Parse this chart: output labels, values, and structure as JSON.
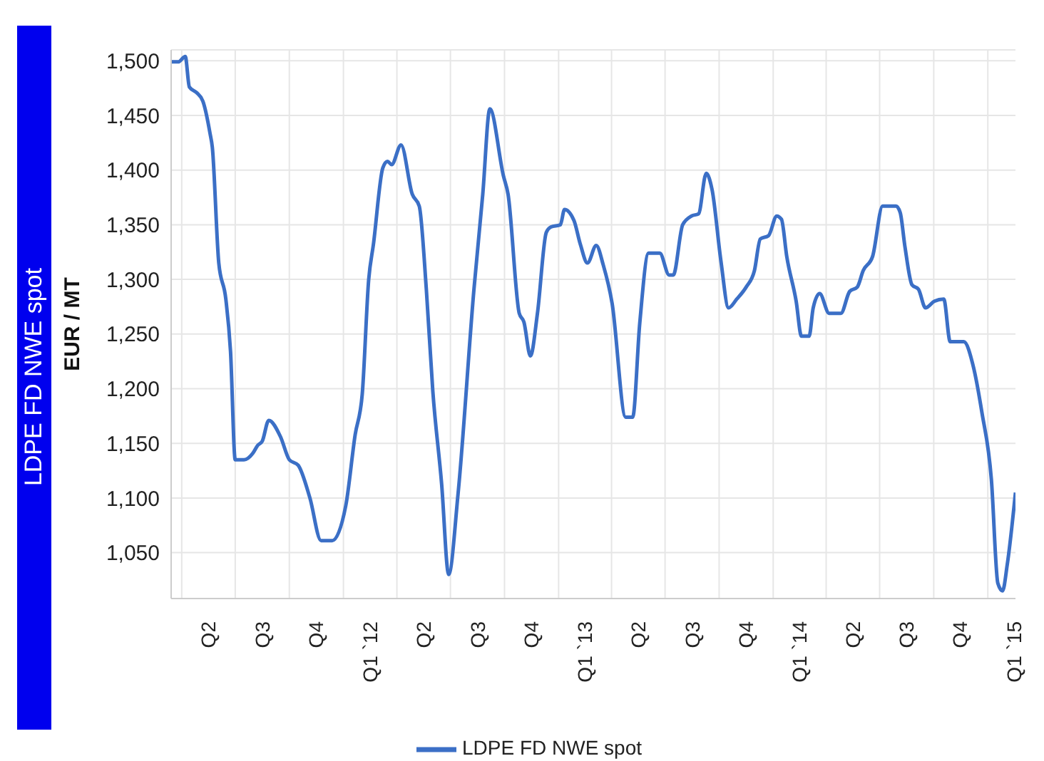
{
  "chart_data": {
    "type": "line",
    "title": "LDPE FD NWE spot",
    "ylabel": "EUR / MT",
    "xlim": [
      "2011-03-14",
      "2015-02-17"
    ],
    "ylim": [
      1008,
      1510
    ],
    "yticks": [
      {
        "value": 1050,
        "label": "1,050"
      },
      {
        "value": 1100,
        "label": "1,100"
      },
      {
        "value": 1150,
        "label": "1,150"
      },
      {
        "value": 1200,
        "label": "1,200"
      },
      {
        "value": 1250,
        "label": "1,250"
      },
      {
        "value": 1300,
        "label": "1,300"
      },
      {
        "value": 1350,
        "label": "1,350"
      },
      {
        "value": 1400,
        "label": "1,400"
      },
      {
        "value": 1450,
        "label": "1,450"
      },
      {
        "value": 1500,
        "label": "1,500"
      }
    ],
    "xticks": [
      {
        "value": "2011-04-01",
        "label": null
      },
      {
        "value": "2011-05-16",
        "label": "Q2"
      },
      {
        "value": "2011-07-01",
        "label": null
      },
      {
        "value": "2011-08-16",
        "label": "Q3"
      },
      {
        "value": "2011-10-01",
        "label": null
      },
      {
        "value": "2011-11-15",
        "label": "Q4"
      },
      {
        "value": "2012-01-01",
        "label": null
      },
      {
        "value": "2012-02-15",
        "label": "Q1 `12"
      },
      {
        "value": "2012-04-01",
        "label": null
      },
      {
        "value": "2012-05-16",
        "label": "Q2"
      },
      {
        "value": "2012-07-01",
        "label": null
      },
      {
        "value": "2012-08-16",
        "label": "Q3"
      },
      {
        "value": "2012-10-01",
        "label": null
      },
      {
        "value": "2012-11-15",
        "label": "Q4"
      },
      {
        "value": "2013-01-01",
        "label": null
      },
      {
        "value": "2013-02-14",
        "label": "Q1 `13"
      },
      {
        "value": "2013-04-01",
        "label": null
      },
      {
        "value": "2013-05-16",
        "label": "Q2"
      },
      {
        "value": "2013-07-01",
        "label": null
      },
      {
        "value": "2013-08-16",
        "label": "Q3"
      },
      {
        "value": "2013-10-01",
        "label": null
      },
      {
        "value": "2013-11-15",
        "label": "Q4"
      },
      {
        "value": "2014-01-01",
        "label": null
      },
      {
        "value": "2014-02-14",
        "label": "Q1 `14"
      },
      {
        "value": "2014-04-01",
        "label": null
      },
      {
        "value": "2014-05-16",
        "label": "Q2"
      },
      {
        "value": "2014-07-01",
        "label": null
      },
      {
        "value": "2014-08-16",
        "label": "Q3"
      },
      {
        "value": "2014-10-01",
        "label": null
      },
      {
        "value": "2014-11-15",
        "label": "Q4"
      },
      {
        "value": "2015-01-01",
        "label": null
      },
      {
        "value": "2015-02-14",
        "label": "Q1 `15"
      }
    ],
    "grid": true,
    "legend": "bottom",
    "series": [
      {
        "name": "LDPE FD NWE spot",
        "color": "#3b6fc6",
        "x": [
          "2011-03-15",
          "2011-03-26",
          "2011-04-07",
          "2011-04-14",
          "2011-04-26",
          "2011-05-07",
          "2011-05-19",
          "2011-05-23",
          "2011-06-03",
          "2011-06-15",
          "2011-06-23",
          "2011-07-01",
          "2011-07-16",
          "2011-07-31",
          "2011-08-08",
          "2011-08-16",
          "2011-08-27",
          "2011-09-16",
          "2011-10-01",
          "2011-10-16",
          "2011-11-05",
          "2011-11-24",
          "2011-12-13",
          "2012-01-05",
          "2012-01-21",
          "2012-02-02",
          "2012-02-13",
          "2012-02-21",
          "2012-03-08",
          "2012-03-16",
          "2012-03-23",
          "2012-04-08",
          "2012-04-27",
          "2012-05-09",
          "2012-05-21",
          "2012-06-01",
          "2012-06-16",
          "2012-06-28",
          "2012-07-14",
          "2012-08-10",
          "2012-08-25",
          "2012-09-06",
          "2012-09-29",
          "2012-10-07",
          "2012-10-26",
          "2012-11-03",
          "2012-11-14",
          "2012-11-26",
          "2012-12-11",
          "2012-12-19",
          "2013-01-04",
          "2013-01-11",
          "2013-01-27",
          "2013-02-07",
          "2013-02-19",
          "2013-03-06",
          "2013-03-18",
          "2013-04-02",
          "2013-04-25",
          "2013-05-07",
          "2013-05-19",
          "2013-06-03",
          "2013-06-22",
          "2013-07-08",
          "2013-07-15",
          "2013-07-31",
          "2013-08-15",
          "2013-08-27",
          "2013-09-09",
          "2013-09-19",
          "2013-10-04",
          "2013-10-17",
          "2013-10-31",
          "2013-11-16",
          "2013-11-30",
          "2013-12-10",
          "2013-12-24",
          "2014-01-07",
          "2014-01-15",
          "2014-01-24",
          "2014-02-09",
          "2014-02-18",
          "2014-03-03",
          "2014-03-10",
          "2014-03-21",
          "2014-04-06",
          "2014-04-26",
          "2014-05-11",
          "2014-05-24",
          "2014-06-03",
          "2014-06-19",
          "2014-07-06",
          "2014-07-29",
          "2014-08-05",
          "2014-08-13",
          "2014-08-25",
          "2014-09-05",
          "2014-09-17",
          "2014-10-02",
          "2014-10-18",
          "2014-10-29",
          "2014-11-21",
          "2014-12-07",
          "2014-12-22",
          "2015-01-07",
          "2015-01-18",
          "2015-01-26",
          "2015-02-03",
          "2015-02-17"
        ],
        "values": [
          1499,
          1499,
          1504,
          1476,
          1471,
          1463,
          1434,
          1421,
          1315,
          1282,
          1234,
          1135,
          1135,
          1141,
          1148,
          1152,
          1171,
          1156,
          1135,
          1130,
          1100,
          1061,
          1061,
          1093,
          1158,
          1195,
          1300,
          1332,
          1402,
          1408,
          1405,
          1423,
          1378,
          1367,
          1291,
          1198,
          1113,
          1030,
          1104,
          1291,
          1378,
          1456,
          1395,
          1378,
          1269,
          1261,
          1230,
          1269,
          1343,
          1348,
          1350,
          1364,
          1354,
          1332,
          1315,
          1331,
          1313,
          1278,
          1174,
          1174,
          1260,
          1324,
          1324,
          1304,
          1304,
          1350,
          1358,
          1360,
          1397,
          1382,
          1317,
          1274,
          1282,
          1293,
          1308,
          1337,
          1340,
          1358,
          1355,
          1321,
          1280,
          1248,
          1248,
          1274,
          1287,
          1269,
          1269,
          1289,
          1293,
          1308,
          1321,
          1367,
          1367,
          1361,
          1330,
          1295,
          1291,
          1274,
          1280,
          1282,
          1243,
          1243,
          1221,
          1178,
          1117,
          1022,
          1015,
          1039,
          1105
        ]
      }
    ]
  }
}
